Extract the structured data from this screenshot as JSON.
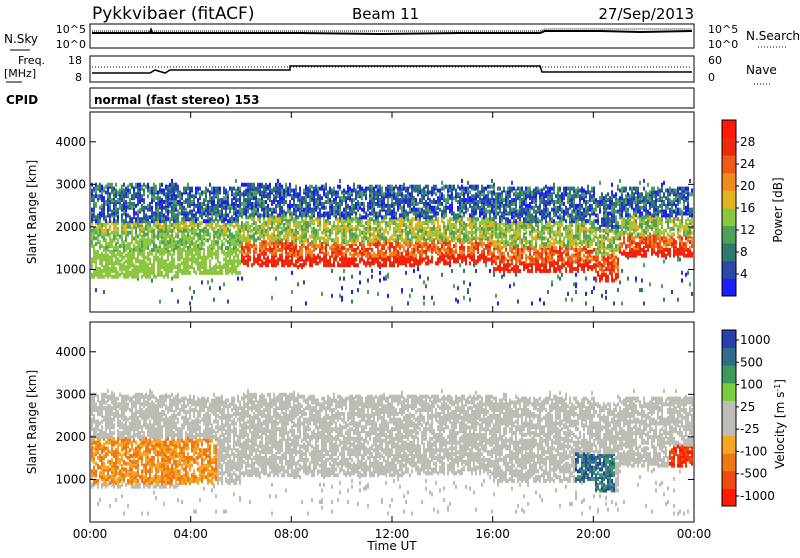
{
  "header": {
    "title": "Pykkvibaer (fitACF)",
    "beam": "Beam 11",
    "date": "27/Sep/2013"
  },
  "noise_panel": {
    "left_label": "N.Sky",
    "left_ticks": [
      "10^5",
      "10^0"
    ],
    "right_label": "N.Search",
    "right_ticks": [
      "10^5",
      "10^0"
    ]
  },
  "freq_panel": {
    "left_label_1": "Freq.",
    "left_label_2": "[MHz]",
    "left_ticks": [
      "18",
      "8"
    ],
    "right_label": "Nave",
    "right_ticks": [
      "60",
      "0"
    ]
  },
  "cpid": {
    "label": "CPID",
    "text": "normal (fast stereo) 153"
  },
  "colors": {
    "power_scale": [
      "#1c1cff",
      "#2a49a8",
      "#2f7a6a",
      "#4ea05a",
      "#8cc63f",
      "#e6b21e",
      "#f08c1e",
      "#f05a14",
      "#ee2a0e",
      "#ff1a00"
    ],
    "velocity_scale": [
      "#2a3fae",
      "#2f6d8a",
      "#3d9a5a",
      "#7ccd3c",
      "#bdbdb5",
      "#bdbdb5",
      "#f5a623",
      "#f07814",
      "#ee4a10",
      "#ff1a00"
    ]
  },
  "chart_data": [
    {
      "type": "heatmap",
      "panel": "power",
      "ylabel": "Slant Range [km]",
      "ylim": [
        0,
        4700
      ],
      "yticks": [
        "1000",
        "2000",
        "3000",
        "4000"
      ],
      "xticks": [
        "00:00",
        "04:00",
        "08:00",
        "12:00",
        "16:00",
        "20:00",
        "00:00"
      ],
      "colorbar_label": "Power [dB]",
      "colorbar_ticks": [
        "4",
        "8",
        "12",
        "16",
        "20",
        "24",
        "28"
      ],
      "clim": [
        0,
        32
      ]
    },
    {
      "type": "heatmap",
      "panel": "velocity",
      "ylabel": "Slant Range [km]",
      "xlabel": "Time UT",
      "ylim": [
        0,
        4700
      ],
      "yticks": [
        "1000",
        "2000",
        "3000",
        "4000"
      ],
      "xticks": [
        "00:00",
        "04:00",
        "08:00",
        "12:00",
        "16:00",
        "20:00",
        "00:00"
      ],
      "colorbar_label": "Velocity [m s^-1]",
      "colorbar_ticks": [
        "1000",
        "500",
        "100",
        "25",
        "-25",
        "-100",
        "-500",
        "-1000"
      ]
    }
  ]
}
